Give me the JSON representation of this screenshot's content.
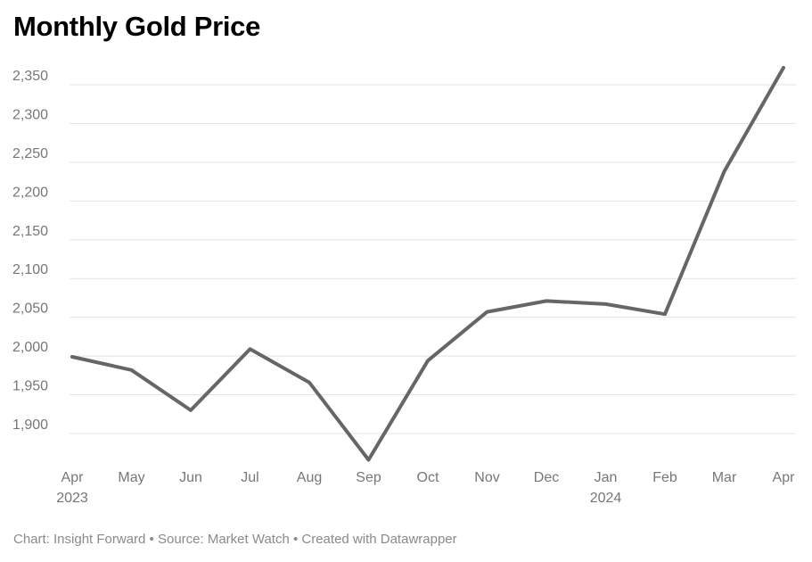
{
  "chart_data": {
    "type": "line",
    "title": "Monthly Gold Price",
    "xlabel": "",
    "ylabel": "",
    "categories": [
      "Apr",
      "May",
      "Jun",
      "Jul",
      "Aug",
      "Sep",
      "Oct",
      "Nov",
      "Dec",
      "Jan",
      "Feb",
      "Mar",
      "Apr"
    ],
    "category_sublabels": [
      "2023",
      "",
      "",
      "",
      "",
      "",
      "",
      "",
      "",
      "2024",
      "",
      "",
      ""
    ],
    "series": [
      {
        "values": [
          1999,
          1982,
          1930,
          2009,
          1966,
          1866,
          1994,
          2057,
          2071,
          2067,
          2054,
          2238,
          2372
        ],
        "color": "#666666"
      }
    ],
    "yticks": [
      1900,
      1950,
      2000,
      2050,
      2100,
      2150,
      2200,
      2250,
      2300,
      2350
    ],
    "ytick_labels": [
      "1,900",
      "1,950",
      "2,000",
      "2,050",
      "2,100",
      "2,150",
      "2,200",
      "2,250",
      "2,300",
      "2,350"
    ],
    "grid": true,
    "legend": "none"
  },
  "footer": "Chart: Insight Forward • Source: Market Watch • Created with Datawrapper"
}
